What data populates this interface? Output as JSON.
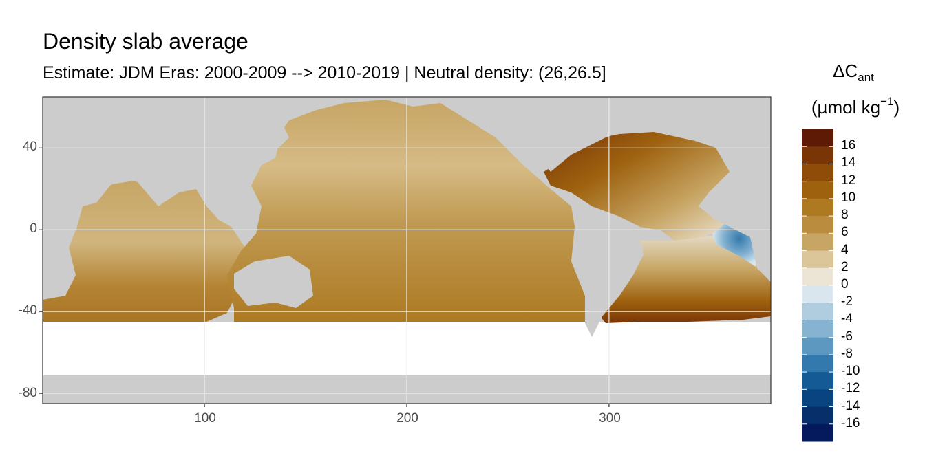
{
  "title": "Density slab average",
  "subtitle": "Estimate: JDM Eras: 2000-2009 --> 2010-2019 | Neutral density: (26,26.5]",
  "legend": {
    "title_main": "ΔC",
    "title_sub": "ant",
    "unit_open": "(µmol kg",
    "unit_sup": "−1",
    "unit_close": ")",
    "labels": [
      "16",
      "14",
      "12",
      "10",
      "8",
      "6",
      "4",
      "2",
      "0",
      "-2",
      "-4",
      "-6",
      "-8",
      "-10",
      "-12",
      "-14",
      "-16"
    ],
    "colors": [
      "#5e1a05",
      "#7a3506",
      "#8f4b08",
      "#9e620f",
      "#ad7a22",
      "#b98c3e",
      "#c7a564",
      "#dbc69a",
      "#ece4d4",
      "#d9e6ed",
      "#b0cde0",
      "#85b3d1",
      "#5c98c0",
      "#3479ad",
      "#145b96",
      "#0a4480",
      "#07306b",
      "#051a5c"
    ]
  },
  "axes": {
    "x_ticks": [
      "100",
      "200",
      "300"
    ],
    "y_ticks": [
      "40",
      "0",
      "-40",
      "-80"
    ]
  },
  "chart_data": {
    "type": "heatmap",
    "xlim": [
      20,
      380
    ],
    "ylim": [
      -85,
      65
    ],
    "x_ticks": [
      100,
      200,
      300
    ],
    "y_ticks": [
      40,
      0,
      -40,
      -80
    ],
    "grid": true,
    "legend_position": "right",
    "value_range": [
      -17,
      17
    ],
    "colors": {
      "land": "#cccccc",
      "no_data": "#ffffff",
      "panel_border": "#333333",
      "grid": "#ebebeb"
    }
  }
}
